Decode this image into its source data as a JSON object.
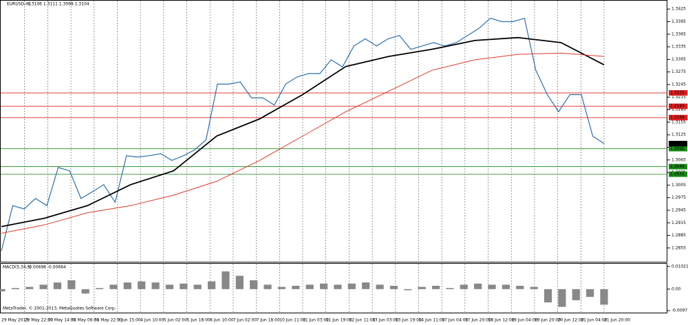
{
  "chart_data": [
    {
      "type": "line",
      "title": "EURUSD,H1",
      "subtitle": "1.3106 1.3111 1.3099 1.3104",
      "x_labels": [
        "29 May 2013",
        "29 May 22:00",
        "30 May 14:00",
        "31 May 06:00",
        "31 May 22:00",
        "3 Jun 15:00",
        "4 Jun 10:00",
        "5 Jun 02:00",
        "5 Jun 18:00",
        "6 Jun 10:00",
        "7 Jun 02:00",
        "7 Jun 18:00",
        "10 Jun 11:00",
        "11 Jun 03:00",
        "11 Jun 19:00",
        "12 Jun 11:00",
        "13 Jun 03:00",
        "13 Jun 19:00",
        "14 Jun 11:00",
        "17 Jun 04:00",
        "17 Jun 20:00",
        "18 Jun 12:00",
        "19 Jun 04:00",
        "19 Jun 20:00",
        "20 Jun 12:00",
        "21 Jun 04:00",
        "21 Jun 20:00"
      ],
      "series": [
        {
          "color": "#2a6fb0",
          "values": [
            1.2848,
            1.2956,
            1.2948,
            1.2973,
            1.2956,
            1.3047,
            1.3039,
            1.2973,
            1.2989,
            1.3006,
            1.2964,
            1.3075,
            1.3072,
            1.3075,
            1.308,
            1.3064,
            1.3075,
            1.3089,
            1.3113,
            1.3246,
            1.3246,
            1.3251,
            1.3213,
            1.3213,
            1.3196,
            1.3246,
            1.3263,
            1.3271,
            1.3271,
            1.3304,
            1.3287,
            1.3337,
            1.3354,
            1.3337,
            1.3354,
            1.3362,
            1.3329,
            1.3337,
            1.3345,
            1.3337,
            1.3345,
            1.3362,
            1.3379,
            1.3403,
            1.3395,
            1.3395,
            1.3403,
            1.3279,
            1.3221,
            1.318,
            1.3221,
            1.3221,
            1.3122,
            1.3104
          ]
        },
        {
          "color": "#000000",
          "values": [
            1.2906,
            1.2926,
            1.2956,
            1.3006,
            1.3039,
            1.3122,
            1.3163,
            1.3221,
            1.3288,
            1.3312,
            1.3329,
            1.335,
            1.3357,
            1.3345,
            1.3292
          ]
        },
        {
          "color": "#e0392b",
          "values": [
            1.289,
            1.291,
            1.2939,
            1.2956,
            1.2981,
            1.3014,
            1.3064,
            1.3122,
            1.318,
            1.3229,
            1.3279,
            1.3304,
            1.3317,
            1.332,
            1.3312
          ]
        }
      ],
      "levels": [
        {
          "value": 1.3225,
          "color": "#e02020"
        },
        {
          "value": 1.3193,
          "color": "#e02020"
        },
        {
          "value": 1.3166,
          "color": "#e02020"
        },
        {
          "value": 1.3092,
          "color": "#1a8a1a"
        },
        {
          "value": 1.3049,
          "color": "#1a8a1a"
        },
        {
          "value": 1.3031,
          "color": "#1a8a1a"
        }
      ],
      "last": 1.3104,
      "ylim": [
        1.2822,
        1.3445
      ],
      "yticks": [
        1.3425,
        1.3395,
        1.3365,
        1.3335,
        1.3305,
        1.3275,
        1.3245,
        1.3215,
        1.3185,
        1.3155,
        1.3125,
        1.3095,
        1.3065,
        1.3035,
        1.3005,
        1.2975,
        1.2945,
        1.2915,
        1.2885,
        1.2855
      ],
      "grid": true
    },
    {
      "type": "bar",
      "title": "MACD(5,34,5)",
      "subtitle": "-0.00698 -0.00664",
      "color": "#888888",
      "values": [
        -0.001,
        0.0005,
        0.001,
        0.002,
        0.003,
        0.004,
        -0.002,
        0.0005,
        0.002,
        0.003,
        0.0035,
        0.003,
        0.002,
        0.0025,
        0.002,
        0.0035,
        0.008,
        0.006,
        0.004,
        0.002,
        0.001,
        0.0015,
        0.002,
        0.0025,
        0.002,
        0.0025,
        0.003,
        0.002,
        0.0015,
        -0.0005,
        0.001,
        0.0015,
        0.0005,
        0.002,
        0.0025,
        0.002,
        0.002,
        0.0015,
        0.001,
        -0.006,
        -0.008,
        -0.005,
        -0.0035,
        -0.007
      ],
      "ylim": [
        -0.0106,
        0.0114
      ],
      "yticks": [
        0.01021,
        {
          "value": 0,
          "label": "0.00"
        },
        -0.0097
      ]
    }
  ],
  "footer": "MetaTrader, © 2001-2013, MetaQuotes Software Corp."
}
